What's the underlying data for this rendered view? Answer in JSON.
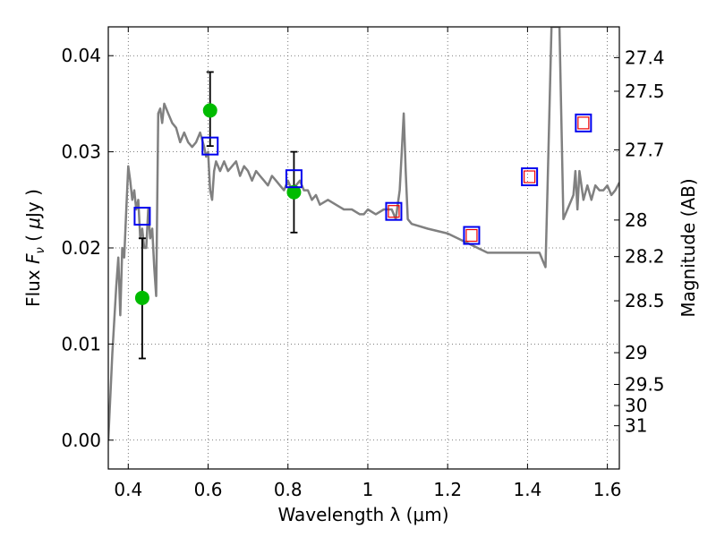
{
  "chart_data": {
    "type": "scatter",
    "xlabel": "Wavelength  λ (μm)",
    "ylabel_parts": {
      "pre": "Flux  ",
      "symbol": "F",
      "subscript": "ν",
      "mid": "  ( ",
      "unit_symbol": "μ",
      "post": "Jy )"
    },
    "ylabel_right": "Magnitude (AB)",
    "xlim": [
      0.35,
      1.63
    ],
    "ylim": [
      -0.003,
      0.043
    ],
    "grid": true,
    "x_ticks": [
      {
        "value": 0.4,
        "label": "0.4"
      },
      {
        "value": 0.6,
        "label": "0.6"
      },
      {
        "value": 0.8,
        "label": "0.8"
      },
      {
        "value": 1.0,
        "label": "1"
      },
      {
        "value": 1.2,
        "label": "1.2"
      },
      {
        "value": 1.4,
        "label": "1.4"
      },
      {
        "value": 1.6,
        "label": "1.6"
      }
    ],
    "y_ticks": [
      {
        "value": 0.0,
        "label": "0.00"
      },
      {
        "value": 0.01,
        "label": "0.01"
      },
      {
        "value": 0.02,
        "label": "0.02"
      },
      {
        "value": 0.03,
        "label": "0.03"
      },
      {
        "value": 0.04,
        "label": "0.04"
      }
    ],
    "magnitude_ticks": [
      {
        "label": "27.4",
        "flux": 0.0398
      },
      {
        "label": "27.5",
        "flux": 0.0363
      },
      {
        "label": "27.7",
        "flux": 0.0302
      },
      {
        "label": "28",
        "flux": 0.0229
      },
      {
        "label": "28.2",
        "flux": 0.0191
      },
      {
        "label": "28.5",
        "flux": 0.0145
      },
      {
        "label": "29",
        "flux": 0.0091
      },
      {
        "label": "29.5",
        "flux": 0.0058
      },
      {
        "label": "30",
        "flux": 0.0036
      },
      {
        "label": "31",
        "flux": 0.0015
      }
    ],
    "colors": {
      "model": "#808080",
      "observed": "#00bb00",
      "model_box": "#0000ee",
      "synthetic_box": "#ee0000",
      "errorbar": "#000000",
      "grid": "#555555"
    },
    "model_spectrum": {
      "x": [
        0.35,
        0.36,
        0.37,
        0.375,
        0.38,
        0.385,
        0.39,
        0.395,
        0.4,
        0.405,
        0.41,
        0.415,
        0.42,
        0.425,
        0.43,
        0.435,
        0.44,
        0.445,
        0.45,
        0.455,
        0.46,
        0.465,
        0.47,
        0.475,
        0.48,
        0.485,
        0.49,
        0.5,
        0.51,
        0.52,
        0.53,
        0.54,
        0.55,
        0.56,
        0.57,
        0.58,
        0.59,
        0.595,
        0.6,
        0.605,
        0.61,
        0.615,
        0.62,
        0.63,
        0.64,
        0.65,
        0.66,
        0.67,
        0.68,
        0.69,
        0.7,
        0.71,
        0.72,
        0.73,
        0.74,
        0.75,
        0.76,
        0.77,
        0.78,
        0.79,
        0.8,
        0.81,
        0.82,
        0.83,
        0.84,
        0.85,
        0.86,
        0.87,
        0.88,
        0.9,
        0.92,
        0.94,
        0.96,
        0.98,
        0.99,
        1.0,
        1.02,
        1.04,
        1.06,
        1.07,
        1.08,
        1.085,
        1.09,
        1.095,
        1.1,
        1.11,
        1.15,
        1.2,
        1.25,
        1.3,
        1.35,
        1.4,
        1.43,
        1.44,
        1.445,
        1.45,
        1.46,
        1.47,
        1.48,
        1.49,
        1.5,
        1.51,
        1.515,
        1.52,
        1.525,
        1.53,
        1.54,
        1.55,
        1.56,
        1.57,
        1.58,
        1.59,
        1.6,
        1.61,
        1.62,
        1.63
      ],
      "y": [
        0.0,
        0.009,
        0.016,
        0.019,
        0.013,
        0.02,
        0.019,
        0.024,
        0.0285,
        0.027,
        0.025,
        0.026,
        0.024,
        0.025,
        0.021,
        0.022,
        0.02,
        0.02,
        0.024,
        0.021,
        0.022,
        0.018,
        0.015,
        0.034,
        0.0345,
        0.033,
        0.035,
        0.034,
        0.033,
        0.0325,
        0.031,
        0.032,
        0.031,
        0.0305,
        0.031,
        0.032,
        0.0305,
        0.0295,
        0.03,
        0.026,
        0.025,
        0.028,
        0.029,
        0.028,
        0.029,
        0.028,
        0.0285,
        0.029,
        0.0275,
        0.0285,
        0.028,
        0.027,
        0.028,
        0.0275,
        0.027,
        0.0265,
        0.0275,
        0.027,
        0.0265,
        0.026,
        0.027,
        0.026,
        0.0265,
        0.027,
        0.026,
        0.026,
        0.025,
        0.0255,
        0.0245,
        0.025,
        0.0245,
        0.024,
        0.024,
        0.0235,
        0.0235,
        0.024,
        0.0235,
        0.024,
        0.024,
        0.023,
        0.026,
        0.03,
        0.034,
        0.028,
        0.023,
        0.0225,
        0.022,
        0.0215,
        0.0205,
        0.0195,
        0.0195,
        0.0195,
        0.0195,
        0.0185,
        0.018,
        0.026,
        0.043,
        0.043,
        0.043,
        0.023,
        0.024,
        0.025,
        0.0255,
        0.028,
        0.024,
        0.028,
        0.025,
        0.0265,
        0.025,
        0.0265,
        0.026,
        0.026,
        0.0265,
        0.0255,
        0.026,
        0.0268
      ]
    },
    "observed_points": [
      {
        "x": 0.435,
        "y": 0.0148,
        "err_low": 0.0063,
        "err_high": 0.0062
      },
      {
        "x": 0.605,
        "y": 0.0343,
        "err_low": 0.0037,
        "err_high": 0.004
      },
      {
        "x": 0.815,
        "y": 0.0258,
        "err_low": 0.0042,
        "err_high": 0.0042
      }
    ],
    "model_photometry": [
      {
        "x": 0.435,
        "y": 0.0233
      },
      {
        "x": 0.605,
        "y": 0.0306
      },
      {
        "x": 0.815,
        "y": 0.0272
      },
      {
        "x": 1.065,
        "y": 0.0238
      },
      {
        "x": 1.26,
        "y": 0.0213
      },
      {
        "x": 1.405,
        "y": 0.0274
      },
      {
        "x": 1.54,
        "y": 0.033
      }
    ],
    "synthetic_photometry": [
      {
        "x": 1.065,
        "y": 0.0238
      },
      {
        "x": 1.26,
        "y": 0.0213
      },
      {
        "x": 1.405,
        "y": 0.0274
      },
      {
        "x": 1.54,
        "y": 0.033
      }
    ]
  }
}
